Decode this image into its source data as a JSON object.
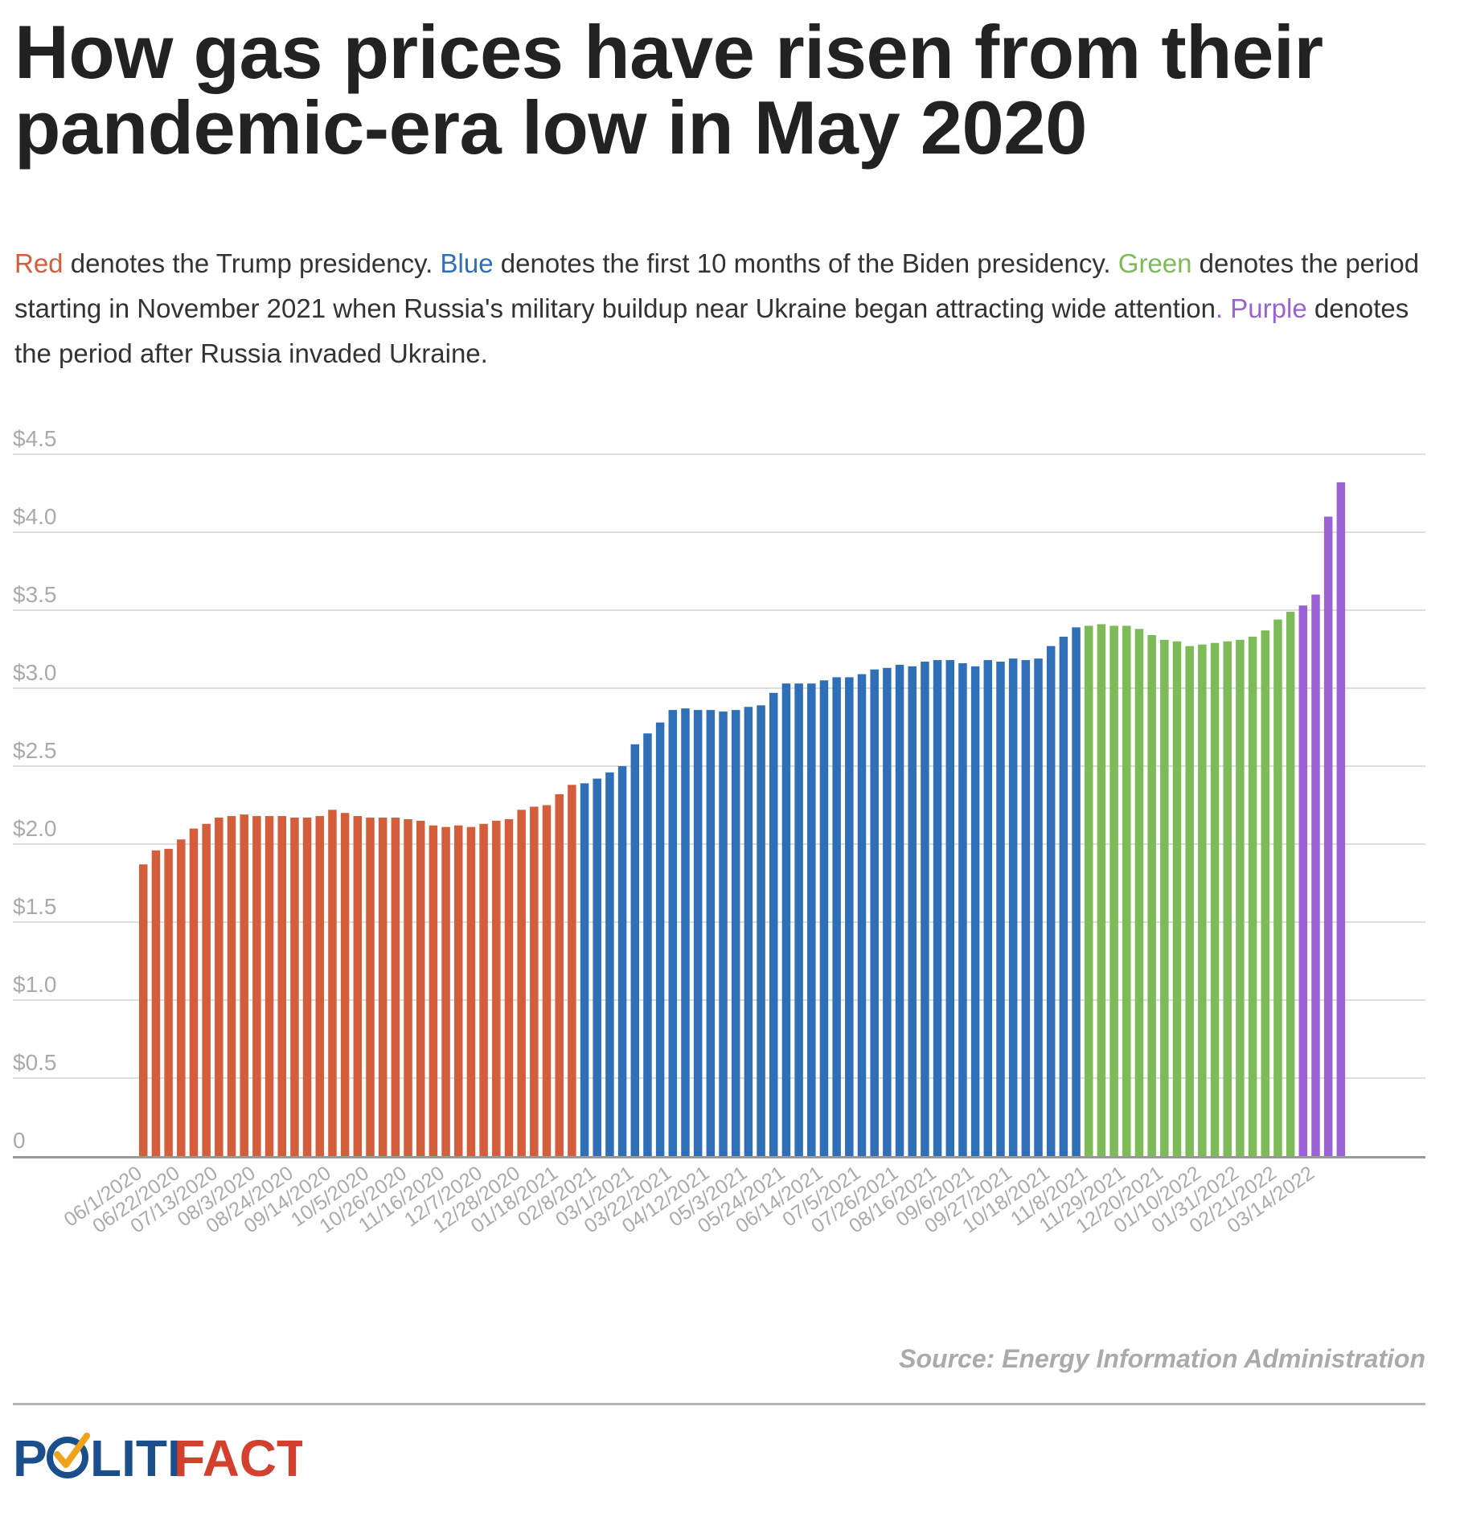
{
  "title": "How gas prices have risen from their pandemic-era low in May 2020",
  "description": {
    "red_word": "Red",
    "red_text": " denotes the Trump presidency. ",
    "blue_word": "Blue",
    "blue_text": " denotes the first 10 months of the Biden presidency. ",
    "green_word": "Green",
    "green_text": " denotes the period starting in November 2021 when Russia's military buildup near Ukraine began attracting wide attention",
    "period": ". ",
    "purple_word": "Purple",
    "purple_text": " denotes the period after Russia invaded Ukraine."
  },
  "colors": {
    "red": "#d45e3c",
    "blue": "#2f6fb7",
    "green": "#7dba58",
    "purple": "#9a62d4",
    "grid": "#dddddd",
    "axis": "#999999",
    "tick_text": "#aaaaaa",
    "title": "#222222",
    "logo_blue": "#1b4f8c",
    "logo_orange": "#f0a21b",
    "logo_red": "#d4402e"
  },
  "source": "Source: Energy Information Administration",
  "logo": {
    "part1": "P",
    "part2": "LITI",
    "part3": "FACT"
  },
  "chart_data": {
    "type": "bar",
    "title": "How gas prices have risen from their pandemic-era low in May 2020",
    "xlabel": "",
    "ylabel": "",
    "ylim": [
      0,
      4.5
    ],
    "yticks": [
      0,
      0.5,
      1.0,
      1.5,
      2.0,
      2.5,
      3.0,
      3.5,
      4.0,
      4.5
    ],
    "ytick_labels": [
      "0",
      "$0.5",
      "$1.0",
      "$1.5",
      "$2.0",
      "$2.5",
      "$3.0",
      "$3.5",
      "$4.0",
      "$4.5"
    ],
    "grid": true,
    "x_tick_labels": [
      "06/1/2020",
      "06/22/2020",
      "07/13/2020",
      "08/3/2020",
      "08/24/2020",
      "09/14/2020",
      "10/5/2020",
      "10/26/2020",
      "11/16/2020",
      "12/7/2020",
      "12/28/2020",
      "01/18/2021",
      "02/8/2021",
      "03/1/2021",
      "03/22/2021",
      "04/12/2021",
      "05/3/2021",
      "05/24/2021",
      "06/14/2021",
      "07/5/2021",
      "07/26/2021",
      "08/16/2021",
      "09/6/2021",
      "09/27/2021",
      "10/18/2021",
      "11/8/2021",
      "11/29/2021",
      "12/20/2021",
      "01/10/2022",
      "01/31/2022",
      "02/21/2022",
      "03/14/2022"
    ],
    "values": [
      1.87,
      1.96,
      1.97,
      2.03,
      2.1,
      2.13,
      2.17,
      2.18,
      2.19,
      2.18,
      2.18,
      2.18,
      2.17,
      2.17,
      2.18,
      2.22,
      2.2,
      2.18,
      2.17,
      2.17,
      2.17,
      2.16,
      2.15,
      2.12,
      2.11,
      2.12,
      2.11,
      2.13,
      2.15,
      2.16,
      2.22,
      2.24,
      2.25,
      2.32,
      2.38,
      2.39,
      2.42,
      2.46,
      2.5,
      2.64,
      2.71,
      2.78,
      2.86,
      2.87,
      2.86,
      2.86,
      2.85,
      2.86,
      2.88,
      2.89,
      2.97,
      3.03,
      3.03,
      3.03,
      3.05,
      3.07,
      3.07,
      3.09,
      3.12,
      3.13,
      3.15,
      3.14,
      3.17,
      3.18,
      3.18,
      3.16,
      3.14,
      3.18,
      3.17,
      3.19,
      3.18,
      3.19,
      3.27,
      3.33,
      3.39,
      3.4,
      3.41,
      3.4,
      3.4,
      3.38,
      3.34,
      3.31,
      3.3,
      3.27,
      3.28,
      3.29,
      3.3,
      3.31,
      3.33,
      3.37,
      3.44,
      3.49,
      3.53,
      3.6,
      4.1,
      4.32
    ],
    "segments": [
      {
        "color": "red",
        "count": 35
      },
      {
        "color": "blue",
        "count": 40
      },
      {
        "color": "green",
        "count": 17
      },
      {
        "color": "purple",
        "count": 4
      }
    ]
  }
}
